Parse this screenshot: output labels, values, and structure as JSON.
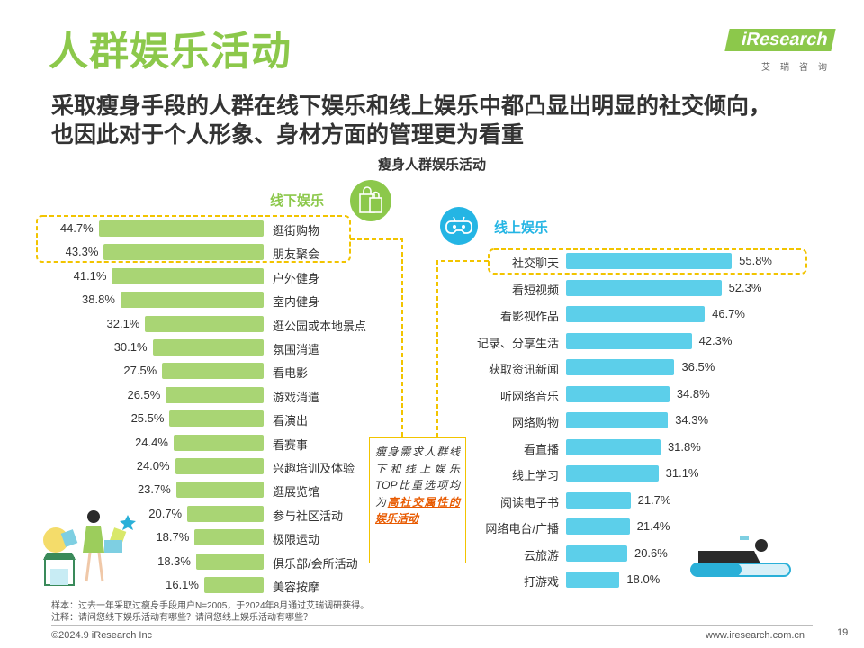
{
  "header": {
    "title": "人群娱乐活动",
    "subtitle_lines": [
      "采取瘦身手段的人群在线下娱乐和线上娱乐中都凸显出明显的社交倾向，",
      "也因此对于个人形象、身材方面的管理更为看重"
    ],
    "logo_text": "iResearch",
    "logo_cn": "艾瑞咨询"
  },
  "chart_data": {
    "type": "bar",
    "title": "瘦身人群娱乐活动",
    "offline": {
      "name": "线下娱乐",
      "categories": [
        "逛街购物",
        "朋友聚会",
        "户外健身",
        "室内健身",
        "逛公园或本地景点",
        "氛围消遣",
        "看电影",
        "游戏消遣",
        "看演出",
        "看赛事",
        "兴趣培训及体验",
        "逛展览馆",
        "参与社区活动",
        "极限运动",
        "俱乐部/会所活动",
        "美容按摩"
      ],
      "values": [
        44.7,
        43.3,
        41.1,
        38.8,
        32.1,
        30.1,
        27.5,
        26.5,
        25.5,
        24.4,
        24.0,
        23.7,
        20.7,
        18.7,
        18.3,
        16.1
      ],
      "value_labels": [
        "44.7%",
        "43.3%",
        "41.1%",
        "38.8%",
        "32.1%",
        "30.1%",
        "27.5%",
        "26.5%",
        "25.5%",
        "24.4%",
        "24.0%",
        "23.7%",
        "20.7%",
        "18.7%",
        "18.3%",
        "16.1%"
      ],
      "color": "#a9d574"
    },
    "online": {
      "name": "线上娱乐",
      "categories": [
        "社交聊天",
        "看短视频",
        "看影视作品",
        "记录、分享生活",
        "获取资讯新闻",
        "听网络音乐",
        "网络购物",
        "看直播",
        "线上学习",
        "阅读电子书",
        "网络电台/广播",
        "云旅游",
        "打游戏"
      ],
      "values": [
        55.8,
        52.3,
        46.7,
        42.3,
        36.5,
        34.8,
        34.3,
        31.8,
        31.1,
        21.7,
        21.4,
        20.6,
        18.0
      ],
      "value_labels": [
        "55.8%",
        "52.3%",
        "46.7%",
        "42.3%",
        "36.5%",
        "34.8%",
        "34.3%",
        "31.8%",
        "31.1%",
        "21.7%",
        "21.4%",
        "20.6%",
        "18.0%"
      ],
      "color": "#5ccfea"
    },
    "highlight_color": "#f2c400"
  },
  "callout": {
    "text_before": "瘦身需求人群线下和线上娱乐TOP比重选项均为",
    "text_highlight": "高社交属性的娱乐活动"
  },
  "footer": {
    "note1": "样本：过去一年采取过瘦身手段用户N=2005，于2024年8月通过艾瑞调研获得。",
    "note2": "注释：请问您线下娱乐活动有哪些？请问您线上娱乐活动有哪些？",
    "copyright": "©2024.9 iResearch Inc",
    "website": "www.iresearch.com.cn",
    "page_number": "19"
  },
  "icons": {
    "offline": "shopping-bag-icon",
    "online": "gamepad-icon"
  }
}
